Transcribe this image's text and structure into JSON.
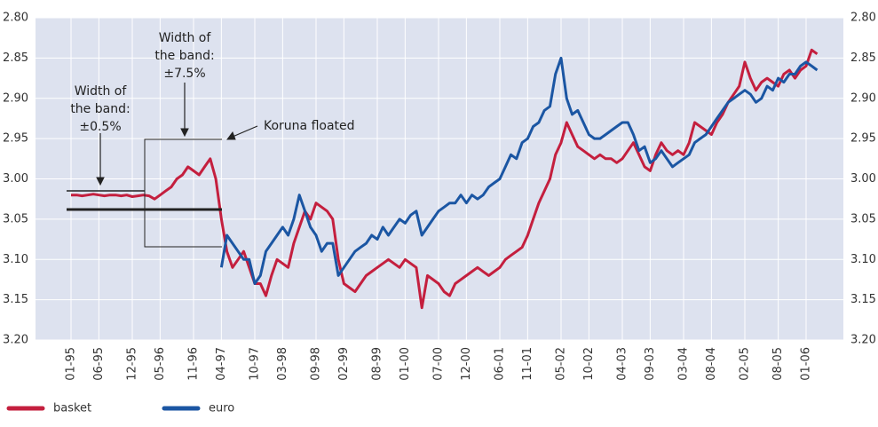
{
  "chart_data": {
    "type": "line",
    "x": [
      "01-95",
      "02-95",
      "03-95",
      "04-95",
      "05-95",
      "06-95",
      "07-95",
      "08-95",
      "09-95",
      "10-95",
      "11-95",
      "12-95",
      "01-96",
      "02-96",
      "03-96",
      "04-96",
      "05-96",
      "06-96",
      "07-96",
      "08-96",
      "09-96",
      "10-96",
      "11-96",
      "12-96",
      "01-97",
      "02-97",
      "03-97",
      "04-97",
      "05-97",
      "06-97",
      "07-97",
      "08-97",
      "09-97",
      "10-97",
      "11-97",
      "12-97",
      "01-98",
      "02-98",
      "03-98",
      "04-98",
      "05-98",
      "06-98",
      "07-98",
      "08-98",
      "09-98",
      "10-98",
      "11-98",
      "12-98",
      "01-99",
      "02-99",
      "03-99",
      "04-99",
      "05-99",
      "06-99",
      "07-99",
      "08-99",
      "09-99",
      "10-99",
      "11-99",
      "12-99",
      "01-00",
      "02-00",
      "03-00",
      "04-00",
      "05-00",
      "06-00",
      "07-00",
      "08-00",
      "09-00",
      "10-00",
      "11-00",
      "12-00",
      "01-01",
      "02-01",
      "03-01",
      "04-01",
      "05-01",
      "06-01",
      "07-01",
      "08-01",
      "09-01",
      "10-01",
      "11-01",
      "12-01",
      "01-02",
      "02-02",
      "03-02",
      "04-02",
      "05-02",
      "06-02",
      "07-02",
      "08-02",
      "09-02",
      "10-02",
      "11-02",
      "12-02",
      "01-03",
      "02-03",
      "03-03",
      "04-03",
      "05-03",
      "06-03",
      "07-03",
      "08-03",
      "09-03",
      "10-03",
      "11-03",
      "12-03",
      "01-04",
      "02-04",
      "03-04",
      "04-04",
      "05-04",
      "06-04",
      "07-04",
      "08-04",
      "09-04",
      "10-04",
      "11-04",
      "12-04",
      "01-05",
      "02-05",
      "03-05",
      "04-05",
      "05-05",
      "06-05",
      "07-05",
      "08-05",
      "09-05",
      "10-05",
      "11-05",
      "12-05",
      "01-06",
      "02-06",
      "03-06"
    ],
    "xticks": [
      "01-95",
      "06-95",
      "12-95",
      "05-96",
      "11-96",
      "04-97",
      "10-97",
      "03-98",
      "09-98",
      "02-99",
      "08-99",
      "01-00",
      "07-00",
      "12-00",
      "06-01",
      "11-01",
      "05-02",
      "10-02",
      "04-03",
      "09-03",
      "03-04",
      "08-04",
      "02-05",
      "08-05",
      "01-06"
    ],
    "series": [
      {
        "name": "basket",
        "color": "#c41f3e",
        "values": [
          3.02,
          3.02,
          3.021,
          3.02,
          3.019,
          3.02,
          3.021,
          3.02,
          3.02,
          3.021,
          3.02,
          3.022,
          3.021,
          3.02,
          3.021,
          3.025,
          3.02,
          3.015,
          3.01,
          3.0,
          2.995,
          2.985,
          2.99,
          2.995,
          2.985,
          2.975,
          3.0,
          3.05,
          3.09,
          3.11,
          3.1,
          3.09,
          3.11,
          3.13,
          3.13,
          3.145,
          3.12,
          3.1,
          3.105,
          3.11,
          3.08,
          3.06,
          3.04,
          3.05,
          3.03,
          3.035,
          3.04,
          3.05,
          3.1,
          3.13,
          3.135,
          3.14,
          3.13,
          3.12,
          3.115,
          3.11,
          3.105,
          3.1,
          3.105,
          3.11,
          3.1,
          3.105,
          3.11,
          3.16,
          3.12,
          3.125,
          3.13,
          3.14,
          3.145,
          3.13,
          3.125,
          3.12,
          3.115,
          3.11,
          3.115,
          3.12,
          3.115,
          3.11,
          3.1,
          3.095,
          3.09,
          3.085,
          3.07,
          3.05,
          3.03,
          3.015,
          3.0,
          2.97,
          2.955,
          2.93,
          2.945,
          2.96,
          2.965,
          2.97,
          2.975,
          2.97,
          2.975,
          2.975,
          2.98,
          2.975,
          2.965,
          2.955,
          2.97,
          2.985,
          2.99,
          2.97,
          2.955,
          2.965,
          2.97,
          2.965,
          2.97,
          2.955,
          2.93,
          2.935,
          2.94,
          2.945,
          2.93,
          2.92,
          2.905,
          2.895,
          2.885,
          2.855,
          2.875,
          2.89,
          2.88,
          2.875,
          2.88,
          2.885,
          2.87,
          2.865,
          2.875,
          2.865,
          2.86,
          2.84,
          2.845
        ]
      },
      {
        "name": "euro",
        "color": "#1b56a3",
        "values": [
          null,
          null,
          null,
          null,
          null,
          null,
          null,
          null,
          null,
          null,
          null,
          null,
          null,
          null,
          null,
          null,
          null,
          null,
          null,
          null,
          null,
          null,
          null,
          null,
          null,
          null,
          null,
          3.11,
          3.07,
          3.08,
          3.09,
          3.1,
          3.1,
          3.13,
          3.12,
          3.09,
          3.08,
          3.07,
          3.06,
          3.07,
          3.05,
          3.02,
          3.04,
          3.06,
          3.07,
          3.09,
          3.08,
          3.08,
          3.12,
          3.11,
          3.1,
          3.09,
          3.085,
          3.08,
          3.07,
          3.075,
          3.06,
          3.07,
          3.06,
          3.05,
          3.055,
          3.045,
          3.04,
          3.07,
          3.06,
          3.05,
          3.04,
          3.035,
          3.03,
          3.03,
          3.02,
          3.03,
          3.02,
          3.025,
          3.02,
          3.01,
          3.005,
          3.0,
          2.985,
          2.97,
          2.975,
          2.955,
          2.95,
          2.935,
          2.93,
          2.915,
          2.91,
          2.87,
          2.85,
          2.9,
          2.92,
          2.915,
          2.93,
          2.945,
          2.95,
          2.95,
          2.945,
          2.94,
          2.935,
          2.93,
          2.93,
          2.945,
          2.965,
          2.96,
          2.98,
          2.975,
          2.965,
          2.975,
          2.985,
          2.98,
          2.975,
          2.97,
          2.955,
          2.95,
          2.945,
          2.935,
          2.925,
          2.915,
          2.905,
          2.9,
          2.895,
          2.89,
          2.895,
          2.905,
          2.9,
          2.885,
          2.89,
          2.875,
          2.88,
          2.87,
          2.87,
          2.86,
          2.855,
          2.86,
          2.865
        ]
      }
    ],
    "ylim": [
      3.2,
      2.8
    ],
    "yticks": [
      {
        "value": 2.8,
        "label": "2.80"
      },
      2.85,
      {
        "value": 2.9,
        "label": "2.90"
      },
      2.95,
      {
        "value": 3.0,
        "label": "3.00"
      },
      3.05,
      {
        "value": 3.1,
        "label": "3.10"
      },
      3.15,
      {
        "value": 3.2,
        "label": "3.20"
      }
    ],
    "grid": true,
    "legend": "bottom",
    "annotations": [
      {
        "lines": [
          "Width of",
          "the band:",
          "±0.5%"
        ]
      },
      {
        "lines": [
          "Width of",
          "the band:",
          "±7.5%"
        ]
      },
      {
        "lines": [
          "Koruna floated"
        ]
      }
    ]
  }
}
